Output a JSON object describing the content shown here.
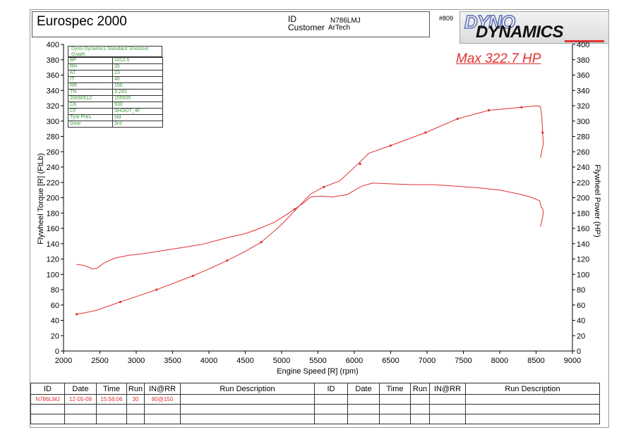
{
  "header": {
    "title": "Eurospec 2000",
    "id_label": "ID",
    "id_value": "N786LMJ",
    "customer_label": "Customer",
    "customer_value": "ArTech",
    "run_number": "#809",
    "logo_line1": "DYNO",
    "logo_line2": "DYNAMICS"
  },
  "info_table": {
    "header": "Dyno Dynamics Standard Shootout Graph.",
    "rows": [
      [
        "BP",
        "1012.5"
      ],
      [
        "RH",
        "35"
      ],
      [
        "AT",
        "23"
      ],
      [
        "IT",
        "46"
      ],
      [
        "RR",
        "150"
      ],
      [
        "TN",
        "3.243"
      ],
      [
        "20090512",
        "155505"
      ],
      [
        "CK",
        "930"
      ],
      [
        "CF",
        "SHOOT_4F"
      ],
      [
        "Tyre Pres",
        "std"
      ],
      [
        "Gear",
        "3rd"
      ]
    ]
  },
  "annotation": "Max 322.7 HP",
  "colors": {
    "curve": "#e03030",
    "info_text": "#3a9a3a"
  },
  "chart_data": {
    "type": "line",
    "xlabel": "Engine Speed [R] (rpm)",
    "ylabel_left": "Flywheel Torque [R] (FtLb)",
    "ylabel_right": "Flywheel Power (HP)",
    "xlim": [
      2000,
      9000
    ],
    "ylim": [
      0,
      400
    ],
    "x_ticks": [
      2000,
      2500,
      3000,
      3500,
      4000,
      4500,
      5000,
      5500,
      6000,
      6500,
      7000,
      7500,
      8000,
      8500,
      9000
    ],
    "y_ticks": [
      0,
      20,
      40,
      60,
      80,
      100,
      120,
      140,
      160,
      180,
      200,
      220,
      240,
      260,
      280,
      300,
      320,
      340,
      360,
      380,
      400
    ],
    "grid": false,
    "series": [
      {
        "name": "Flywheel Torque",
        "x": [
          2180,
          2260,
          2330,
          2400,
          2460,
          2560,
          2700,
          2900,
          3100,
          3300,
          3500,
          3700,
          3900,
          4100,
          4300,
          4500,
          4700,
          4900,
          5100,
          5300,
          5400,
          5550,
          5700,
          5900,
          6100,
          6250,
          6500,
          6800,
          7100,
          7400,
          7700,
          8000,
          8300,
          8450,
          8550,
          8570,
          8590,
          8600,
          8580,
          8560
        ],
        "y": [
          113,
          112,
          110,
          107,
          108,
          115,
          121,
          125,
          127,
          130,
          133,
          136,
          139,
          144,
          149,
          153,
          160,
          168,
          180,
          193,
          201,
          202,
          201,
          204,
          215,
          219,
          218,
          217,
          217,
          215,
          213,
          210,
          204,
          200,
          196,
          188,
          186,
          180,
          170,
          162
        ]
      },
      {
        "name": "Flywheel Power",
        "x": [
          2180,
          2300,
          2450,
          2600,
          2780,
          3000,
          3280,
          3500,
          3780,
          4000,
          4250,
          4500,
          4720,
          5000,
          5200,
          5400,
          5580,
          5800,
          6050,
          6200,
          6500,
          6980,
          7420,
          7850,
          8300,
          8500,
          8560,
          8580,
          8590,
          8600,
          8580,
          8560
        ],
        "y": [
          48,
          50,
          53,
          58,
          64,
          71,
          80,
          88,
          98,
          107,
          118,
          130,
          142,
          165,
          185,
          205,
          214,
          222,
          244,
          258,
          268,
          285,
          303,
          314,
          318,
          320,
          319,
          305,
          285,
          270,
          262,
          252
        ],
        "markers_x": [
          2180,
          2780,
          3280,
          3780,
          4250,
          4720,
          5180,
          5580,
          6080,
          6500,
          6980,
          7420,
          7850,
          8300,
          8590
        ],
        "markers_y": [
          48,
          64,
          80,
          98,
          118,
          142,
          185,
          214,
          244,
          268,
          285,
          303,
          314,
          318,
          285
        ]
      }
    ]
  },
  "runs_table": {
    "headers": [
      "ID",
      "Date",
      "Time",
      "Run",
      "IN@RR",
      "Run Description",
      "ID",
      "Date",
      "Time",
      "Run",
      "IN@RR",
      "Run Description"
    ],
    "rows": [
      [
        "N786LMJ",
        "12-05-09",
        "15:56:06",
        "30",
        "80@150",
        "",
        "",
        "",
        "",
        "",
        "",
        ""
      ]
    ]
  }
}
